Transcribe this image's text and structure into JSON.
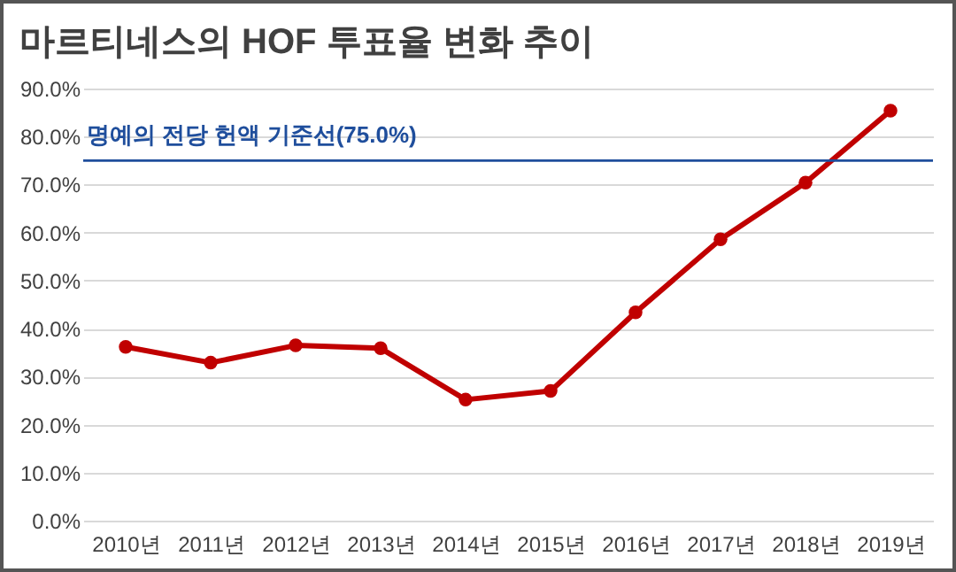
{
  "chart_data": {
    "type": "line",
    "title": "마르티네스의 HOF 투표율 변화 추이",
    "categories": [
      "2010년",
      "2011년",
      "2012년",
      "2013년",
      "2014년",
      "2015년",
      "2016년",
      "2017년",
      "2018년",
      "2019년"
    ],
    "series": [
      {
        "color": "#c00000",
        "values": [
          36.2,
          32.9,
          36.5,
          35.9,
          25.2,
          27.0,
          43.4,
          58.6,
          70.4,
          85.4
        ]
      }
    ],
    "ylim": [
      0,
      90
    ],
    "yticks": [
      {
        "value": 0,
        "label": "0.0%"
      },
      {
        "value": 10,
        "label": "10.0%"
      },
      {
        "value": 20,
        "label": "20.0%"
      },
      {
        "value": 30,
        "label": "30.0%"
      },
      {
        "value": 40,
        "label": "40.0%"
      },
      {
        "value": 50,
        "label": "50.0%"
      },
      {
        "value": 60,
        "label": "60.0%"
      },
      {
        "value": 70,
        "label": "70.0%"
      },
      {
        "value": 80,
        "label": "80.0%"
      },
      {
        "value": 90,
        "label": "90.0%"
      }
    ],
    "ref_lines": [
      {
        "axis": "y",
        "value": 75,
        "label": "명예의 전당 헌액 기준선(75.0%)",
        "color": "#1f4e9c"
      }
    ],
    "grid": "y",
    "marker": "circle"
  }
}
